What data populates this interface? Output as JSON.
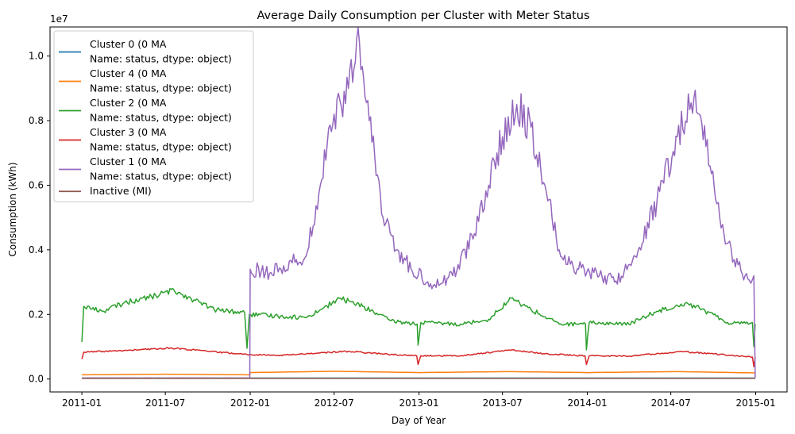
{
  "chart_data": {
    "type": "line",
    "title": "Average Daily Consumption per Cluster with Meter Status",
    "xlabel": "Day of Year",
    "ylabel": "Consumption (kWh)",
    "y_scale_label": "1e7",
    "x_range": [
      "2010-10-24",
      "2015-03-10"
    ],
    "ylim": [
      -400000,
      10900000
    ],
    "y_ticks": [
      0,
      2000000,
      4000000,
      6000000,
      8000000,
      10000000
    ],
    "y_tick_labels": [
      "0.0",
      "0.2",
      "0.4",
      "0.6",
      "0.8",
      "1.0"
    ],
    "x_ticks": [
      "2011-01-01",
      "2011-07-01",
      "2012-01-01",
      "2012-07-01",
      "2013-01-01",
      "2013-07-01",
      "2014-01-01",
      "2014-07-01",
      "2015-01-01"
    ],
    "x_tick_labels": [
      "2011-01",
      "2011-07",
      "2012-01",
      "2012-07",
      "2013-01",
      "2013-07",
      "2014-01",
      "2014-07",
      "2015-01"
    ],
    "grid": false,
    "legend_position": "upper-left",
    "series": [
      {
        "name": "Cluster 0 (0    MA\nName: status, dtype: object)",
        "color": "#1f77b4",
        "points": [
          [
            "2011-01-01",
            30000
          ],
          [
            "2013-01-01",
            30000
          ],
          [
            "2014-12-31",
            30000
          ]
        ]
      },
      {
        "name": "Cluster 4 (0    MA\nName: status, dtype: object)",
        "color": "#ff7f0e",
        "points": [
          [
            "2011-01-01",
            130000
          ],
          [
            "2011-07-01",
            150000
          ],
          [
            "2011-12-31",
            130000
          ],
          [
            "2012-01-01",
            200000
          ],
          [
            "2012-07-01",
            240000
          ],
          [
            "2013-01-01",
            200000
          ],
          [
            "2013-07-15",
            230000
          ],
          [
            "2014-01-01",
            200000
          ],
          [
            "2014-07-15",
            230000
          ],
          [
            "2014-12-31",
            190000
          ]
        ]
      },
      {
        "name": "Cluster 2 (0    MA\nName: status, dtype: object)",
        "color": "#2ca02c",
        "points": [
          [
            "2011-01-01",
            1150000
          ],
          [
            "2011-01-05",
            2250000
          ],
          [
            "2011-02-15",
            2100000
          ],
          [
            "2011-04-01",
            2350000
          ],
          [
            "2011-06-01",
            2550000
          ],
          [
            "2011-07-20",
            2750000
          ],
          [
            "2011-09-01",
            2450000
          ],
          [
            "2011-10-15",
            2150000
          ],
          [
            "2011-12-20",
            2050000
          ],
          [
            "2011-12-25",
            950000
          ],
          [
            "2011-12-30",
            2000000
          ],
          [
            "2012-03-01",
            1950000
          ],
          [
            "2012-05-01",
            1900000
          ],
          [
            "2012-07-15",
            2500000
          ],
          [
            "2012-09-01",
            2250000
          ],
          [
            "2012-11-01",
            1800000
          ],
          [
            "2012-12-28",
            1700000
          ],
          [
            "2012-12-30",
            1050000
          ],
          [
            "2013-01-05",
            1750000
          ],
          [
            "2013-04-01",
            1700000
          ],
          [
            "2013-06-01",
            1850000
          ],
          [
            "2013-07-20",
            2500000
          ],
          [
            "2013-09-01",
            2150000
          ],
          [
            "2013-11-01",
            1700000
          ],
          [
            "2013-12-28",
            1700000
          ],
          [
            "2013-12-30",
            900000
          ],
          [
            "2014-01-05",
            1750000
          ],
          [
            "2014-04-01",
            1700000
          ],
          [
            "2014-06-01",
            2100000
          ],
          [
            "2014-08-01",
            2350000
          ],
          [
            "2014-09-01",
            2200000
          ],
          [
            "2014-11-01",
            1750000
          ],
          [
            "2014-12-25",
            1750000
          ],
          [
            "2014-12-28",
            1000000
          ],
          [
            "2014-12-31",
            1700000
          ]
        ]
      },
      {
        "name": "Cluster 3 (0    MA\nName: status, dtype: object)",
        "color": "#d62728",
        "points": [
          [
            "2011-01-01",
            620000
          ],
          [
            "2011-01-05",
            830000
          ],
          [
            "2011-04-01",
            880000
          ],
          [
            "2011-07-15",
            960000
          ],
          [
            "2011-10-01",
            860000
          ],
          [
            "2011-12-25",
            760000
          ],
          [
            "2012-03-01",
            730000
          ],
          [
            "2012-08-01",
            860000
          ],
          [
            "2012-11-01",
            760000
          ],
          [
            "2012-12-27",
            720000
          ],
          [
            "2012-12-30",
            450000
          ],
          [
            "2013-01-05",
            720000
          ],
          [
            "2013-04-01",
            720000
          ],
          [
            "2013-07-20",
            900000
          ],
          [
            "2013-10-01",
            780000
          ],
          [
            "2013-12-27",
            720000
          ],
          [
            "2013-12-30",
            450000
          ],
          [
            "2014-01-05",
            720000
          ],
          [
            "2014-04-01",
            710000
          ],
          [
            "2014-07-20",
            850000
          ],
          [
            "2014-10-01",
            780000
          ],
          [
            "2014-12-25",
            680000
          ],
          [
            "2014-12-28",
            380000
          ],
          [
            "2014-12-31",
            680000
          ]
        ]
      },
      {
        "name": "Cluster 1 (0    MA\nName: status, dtype: object)",
        "color": "#9467bd",
        "points": [
          [
            "2011-01-01",
            30000
          ],
          [
            "2011-12-31",
            30000
          ],
          [
            "2012-01-01",
            3400000
          ],
          [
            "2012-02-15",
            3300000
          ],
          [
            "2012-04-01",
            3600000
          ],
          [
            "2012-05-01",
            3800000
          ],
          [
            "2012-06-01",
            6000000
          ],
          [
            "2012-07-01",
            8200000
          ],
          [
            "2012-08-01",
            9000000
          ],
          [
            "2012-08-25",
            10400000
          ],
          [
            "2012-09-15",
            8000000
          ],
          [
            "2012-10-15",
            5000000
          ],
          [
            "2012-11-15",
            4000000
          ],
          [
            "2012-12-15",
            3400000
          ],
          [
            "2013-02-01",
            2900000
          ],
          [
            "2013-03-15",
            3200000
          ],
          [
            "2013-05-01",
            4500000
          ],
          [
            "2013-06-01",
            6000000
          ],
          [
            "2013-07-01",
            7500000
          ],
          [
            "2013-08-01",
            8500000
          ],
          [
            "2013-09-01",
            7800000
          ],
          [
            "2013-10-01",
            6000000
          ],
          [
            "2013-11-01",
            4000000
          ],
          [
            "2013-12-01",
            3500000
          ],
          [
            "2014-01-15",
            3300000
          ],
          [
            "2014-03-01",
            3000000
          ],
          [
            "2014-04-15",
            3800000
          ],
          [
            "2014-06-01",
            5500000
          ],
          [
            "2014-07-15",
            7500000
          ],
          [
            "2014-08-20",
            8700000
          ],
          [
            "2014-09-15",
            7200000
          ],
          [
            "2014-10-15",
            5000000
          ],
          [
            "2014-11-15",
            3700000
          ],
          [
            "2014-12-15",
            3100000
          ],
          [
            "2014-12-28",
            3200000
          ],
          [
            "2014-12-31",
            30000
          ]
        ]
      },
      {
        "name": "Inactive (MI)",
        "color": "#8c564b",
        "points": [
          [
            "2011-01-01",
            20000
          ],
          [
            "2013-01-01",
            20000
          ],
          [
            "2014-12-31",
            20000
          ]
        ]
      }
    ]
  }
}
